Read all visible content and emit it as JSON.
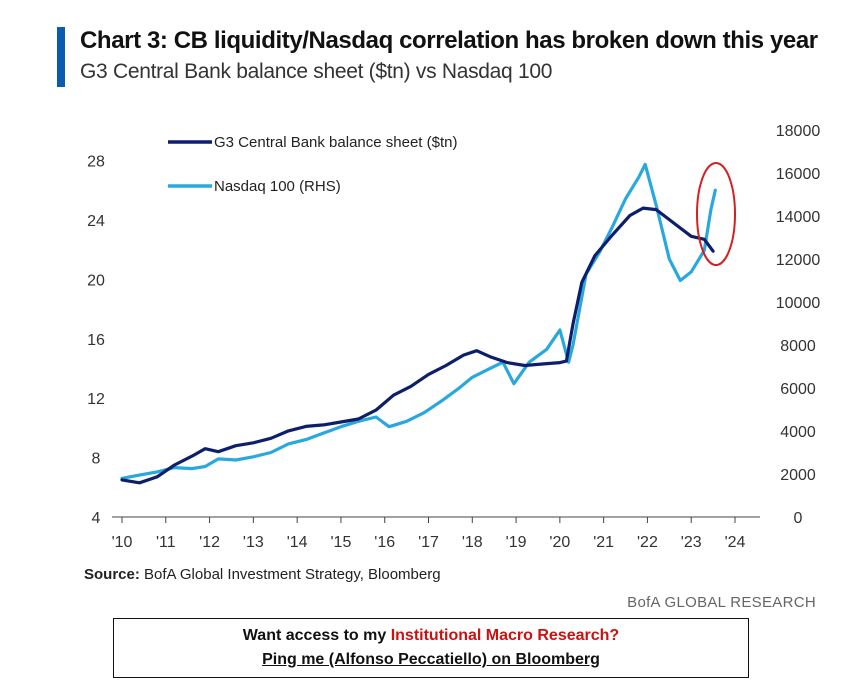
{
  "header": {
    "title": "Chart 3: CB liquidity/Nasdaq correlation has broken down this year",
    "subtitle": "G3 Central Bank balance sheet ($tn) vs Nasdaq 100"
  },
  "colors": {
    "accent": "#0b5cad",
    "cb_series": "#0d1f6b",
    "nasdaq_series": "#29a8e0",
    "highlight": "#d42020",
    "promo_red": "#cc1111"
  },
  "chart_data": {
    "type": "line",
    "title": "Chart 3: CB liquidity/Nasdaq correlation has broken down this year",
    "subtitle": "G3 Central Bank balance sheet ($tn) vs Nasdaq 100",
    "x_ticks": [
      "'10",
      "'11",
      "'12",
      "'13",
      "'14",
      "'15",
      "'16",
      "'17",
      "'18",
      "'19",
      "'20",
      "'21",
      "'22",
      "'23",
      "'24"
    ],
    "xlim": [
      2010,
      2024.3
    ],
    "y_left": {
      "label": "",
      "ticks": [
        4,
        8,
        12,
        16,
        20,
        24,
        28
      ],
      "ylim": [
        4,
        30
      ]
    },
    "y_right": {
      "label": "",
      "ticks": [
        0,
        2000,
        4000,
        6000,
        8000,
        10000,
        12000,
        14000,
        16000,
        18000
      ],
      "ylim": [
        0,
        18000
      ]
    },
    "legend_position": "top-left",
    "series": [
      {
        "name": "G3 Central Bank balance sheet ($tn)",
        "axis": "left",
        "x": [
          2010.0,
          2010.4,
          2010.8,
          2011.2,
          2011.6,
          2011.9,
          2012.2,
          2012.6,
          2013.0,
          2013.4,
          2013.8,
          2014.2,
          2014.6,
          2015.0,
          2015.4,
          2015.8,
          2016.2,
          2016.6,
          2017.0,
          2017.4,
          2017.8,
          2018.1,
          2018.4,
          2018.8,
          2019.2,
          2019.6,
          2020.0,
          2020.15,
          2020.3,
          2020.5,
          2020.8,
          2021.2,
          2021.6,
          2021.9,
          2022.2,
          2022.6,
          2023.0,
          2023.3,
          2023.5
        ],
        "values": [
          6.5,
          6.3,
          6.7,
          7.5,
          8.1,
          8.6,
          8.4,
          8.8,
          9.0,
          9.3,
          9.8,
          10.1,
          10.2,
          10.4,
          10.6,
          11.2,
          12.2,
          12.8,
          13.6,
          14.2,
          14.9,
          15.2,
          14.8,
          14.4,
          14.2,
          14.3,
          14.4,
          14.5,
          17.0,
          19.8,
          21.6,
          23.0,
          24.3,
          24.8,
          24.7,
          23.8,
          22.9,
          22.7,
          21.9
        ]
      },
      {
        "name": "Nasdaq 100 (RHS)",
        "axis": "right",
        "x": [
          2010.0,
          2010.4,
          2010.8,
          2011.2,
          2011.6,
          2011.9,
          2012.2,
          2012.6,
          2013.0,
          2013.4,
          2013.8,
          2014.2,
          2014.6,
          2015.0,
          2015.4,
          2015.8,
          2016.1,
          2016.5,
          2016.9,
          2017.3,
          2017.7,
          2018.0,
          2018.4,
          2018.7,
          2018.95,
          2019.3,
          2019.7,
          2020.0,
          2020.2,
          2020.3,
          2020.6,
          2020.9,
          2021.2,
          2021.5,
          2021.8,
          2021.95,
          2022.2,
          2022.5,
          2022.75,
          2023.0,
          2023.3,
          2023.45,
          2023.55
        ],
        "values": [
          1800,
          1950,
          2100,
          2300,
          2250,
          2350,
          2700,
          2650,
          2800,
          3000,
          3400,
          3600,
          3900,
          4200,
          4450,
          4650,
          4200,
          4450,
          4850,
          5400,
          6000,
          6500,
          6900,
          7200,
          6200,
          7200,
          7800,
          8700,
          7200,
          8000,
          11300,
          12300,
          13500,
          14800,
          15800,
          16400,
          14500,
          12000,
          11000,
          11400,
          12400,
          14300,
          15200
        ]
      }
    ],
    "annotation": "red ellipse highlighting 2023 divergence"
  },
  "legend": {
    "cb_label": "G3 Central Bank balance sheet ($tn)",
    "nasdaq_label": "Nasdaq 100 (RHS)"
  },
  "footer": {
    "source_label": "Source:",
    "source_text": "BofA Global Investment Strategy, Bloomberg",
    "brand": "BofA GLOBAL RESEARCH"
  },
  "promo": {
    "line1_prefix": "Want access to my ",
    "line1_highlight": "Institutional Macro Research?",
    "line2": "Ping me (Alfonso Peccatiello) on Bloomberg"
  }
}
